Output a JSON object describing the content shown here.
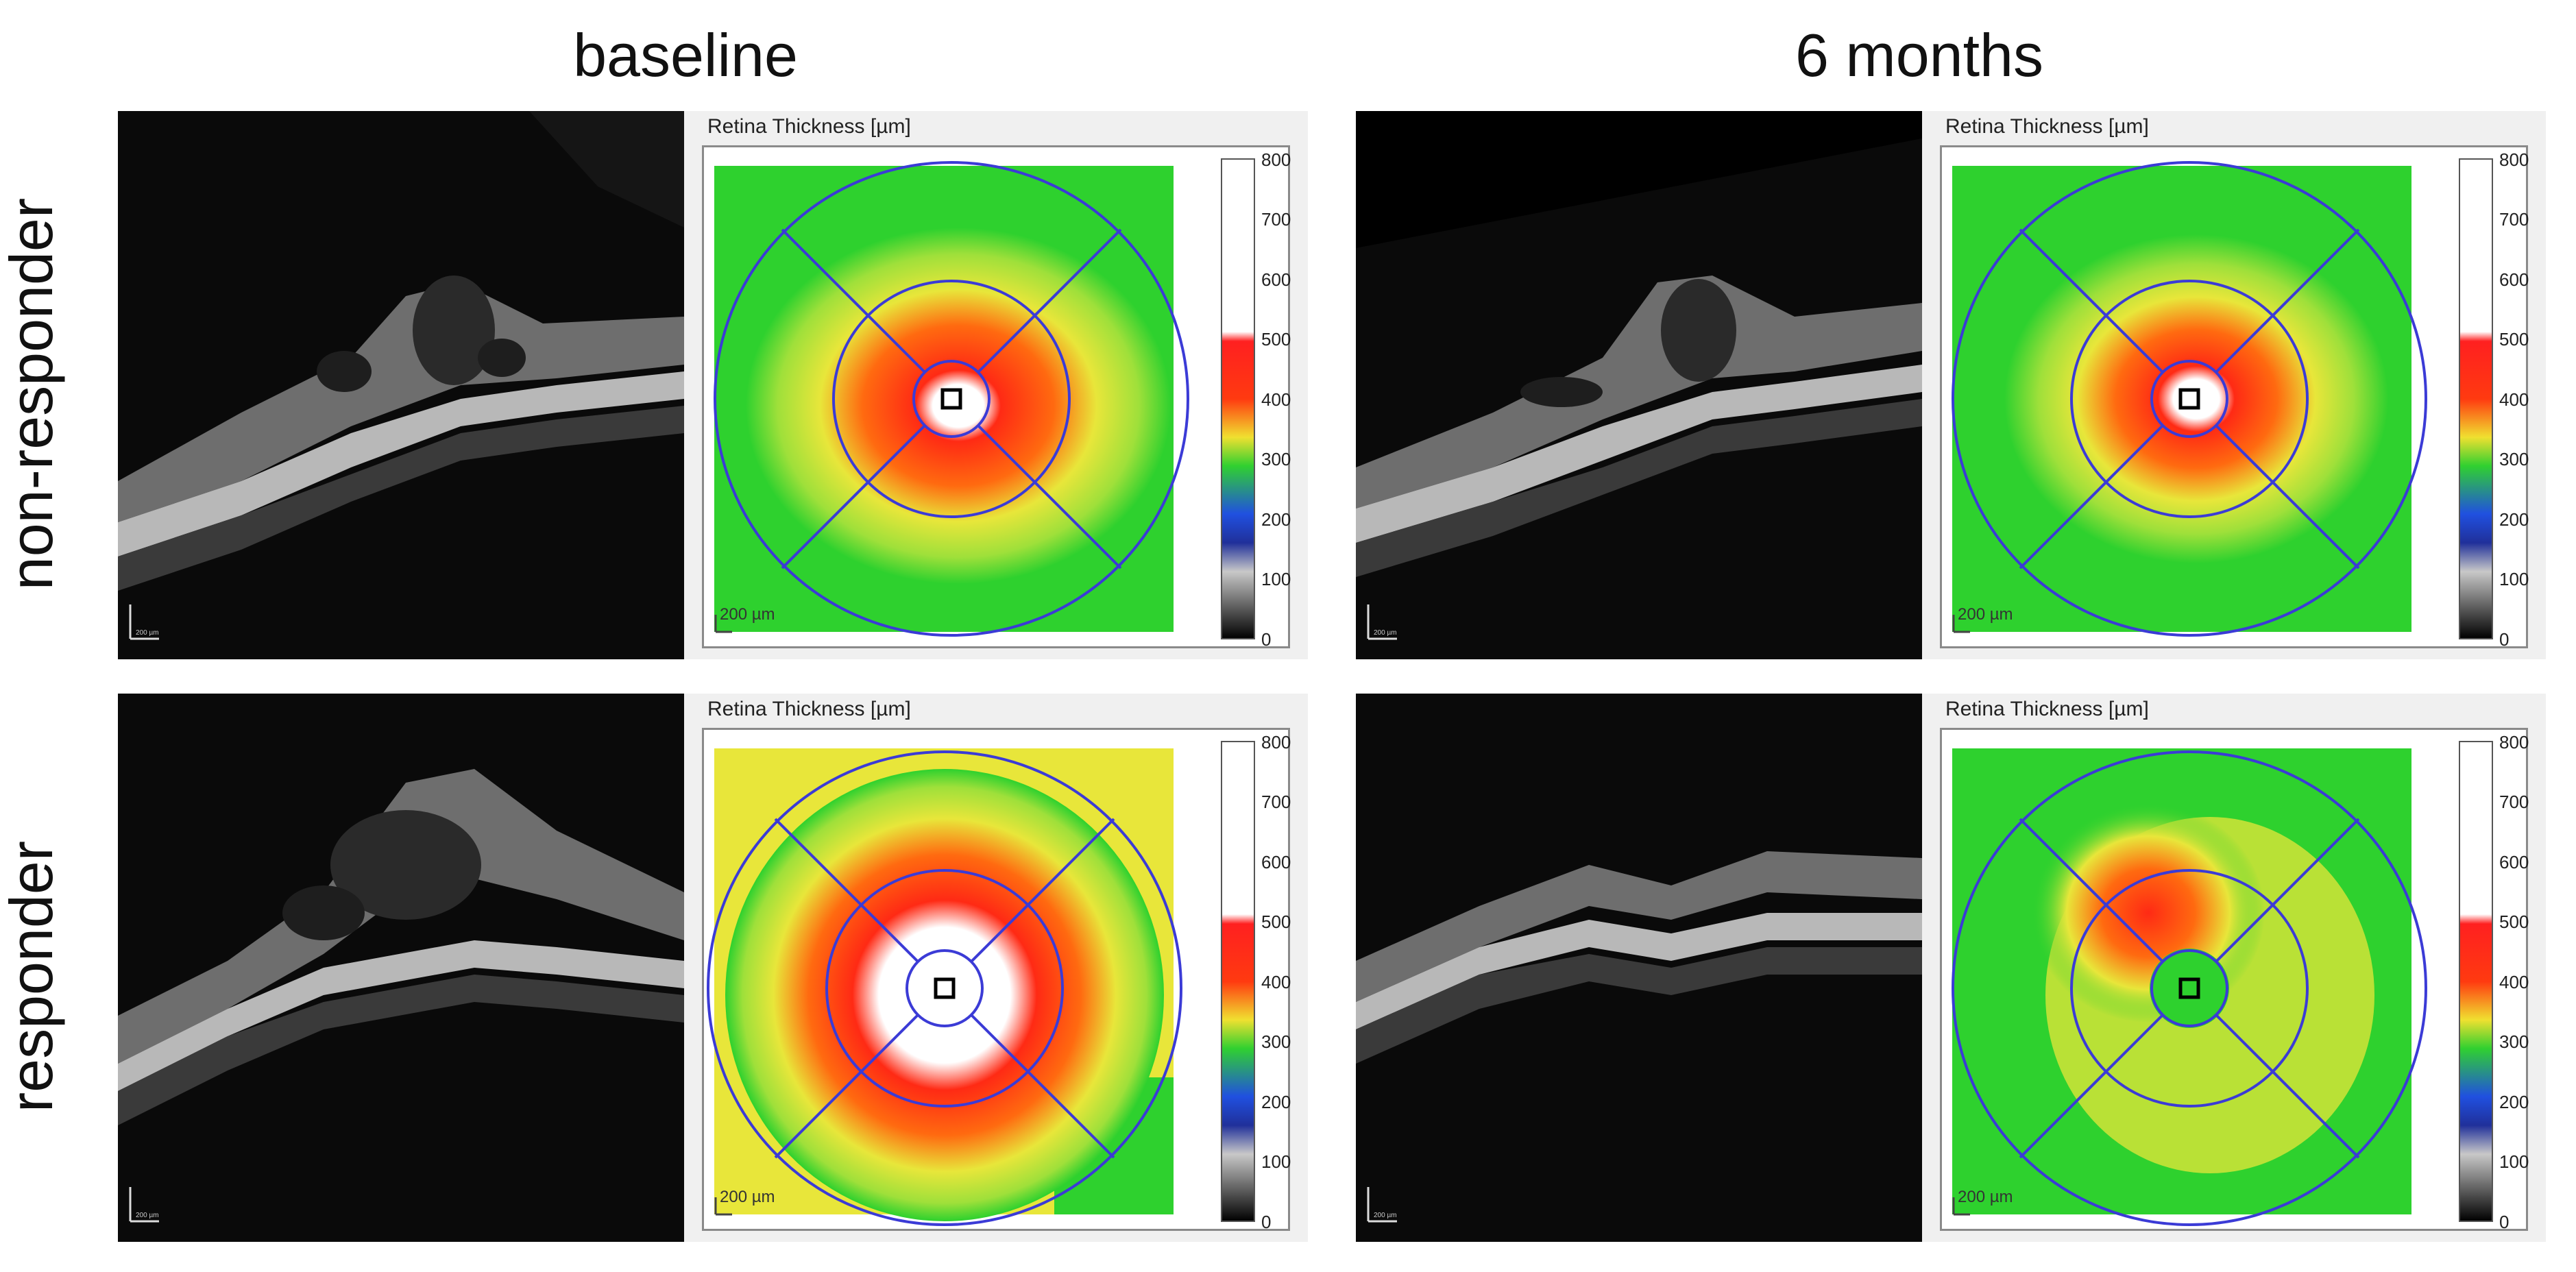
{
  "columns": [
    {
      "title": "baseline"
    },
    {
      "title": "6 months"
    }
  ],
  "rows": [
    {
      "label": "non-responder"
    },
    {
      "label": "responder"
    }
  ],
  "panels": [
    {
      "map_title": "Retina Thickness [µm]",
      "scale_bar": "200 µm",
      "oct_scale": "200 µm"
    },
    {
      "map_title": "Retina Thickness [µm]",
      "scale_bar": "200 µm",
      "oct_scale": "200 µm"
    },
    {
      "map_title": "Retina Thickness [µm]",
      "scale_bar": "200 µm",
      "oct_scale": "200 µm"
    },
    {
      "map_title": "Retina Thickness [µm]",
      "scale_bar": "200 µm",
      "oct_scale": "200 µm"
    }
  ],
  "colorbar_ticks": [
    "800",
    "700",
    "600",
    "500",
    "400",
    "300",
    "200",
    "100",
    "0"
  ],
  "colors": {
    "ring_blue": "#3b3bd6",
    "map_green": "#2ed12e",
    "map_yellow": "#e8e63a",
    "map_red": "#ff2a14"
  }
}
